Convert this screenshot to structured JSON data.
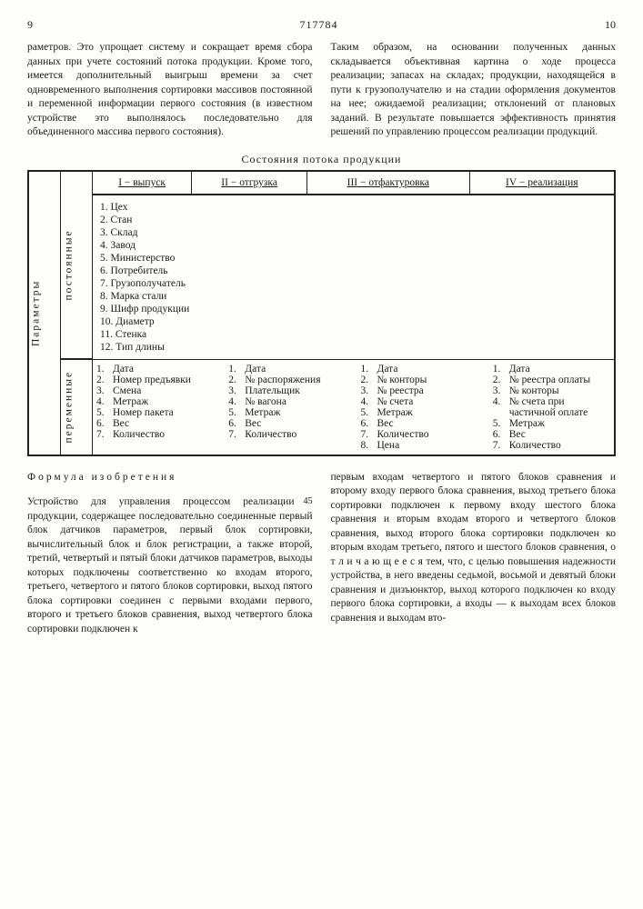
{
  "header": {
    "page_left": "9",
    "doc_number": "717784",
    "page_right": "10"
  },
  "top_left_paragraph": "раметров. Это упрощает систему и сокращает время сбора данных при учете состояний потока продукции. Кроме того, имеется дополнительный выигрыш времени за счет одновременного выполнения сортировки массивов постоянной и переменной информации первого состояния (в известном устройстве это выполнялось последовательно для объединенного массива первого состояния).",
  "top_right_paragraph": "Таким образом, на основании полученных данных складывается объективная картина о ходе процесса реализации; запасах на складах; продукции, находящейся в пути к грузополучателю и на стадии оформления документов на нее; ожидаемой реализации; отклонений от плановых заданий. В результате повышается эффективность принятия решений по управлению процессом реализации продукций.",
  "table": {
    "title": "Состояния потока продукции",
    "side_outer": "Параметры",
    "side_top": "постоянные",
    "side_bottom": "переменные",
    "headers": {
      "c1": "I − выпуск",
      "c2": "II − отгрузка",
      "c3": "III − отфактуровка",
      "c4": "IV − реализация"
    },
    "constant_items": [
      "1. Цех",
      "2. Стан",
      "3. Склад",
      "4. Завод",
      "5. Министерство",
      "6. Потребитель",
      "7. Грузополучатель",
      "8. Марка стали",
      "9. Шифр продукции",
      "10. Диаметр",
      "11. Стенка",
      "12. Тип длины"
    ],
    "variable": {
      "col1": [
        {
          "n": "1.",
          "t": "Дата"
        },
        {
          "n": "2.",
          "t": "Номер предъявки"
        },
        {
          "n": "3.",
          "t": "Смена"
        },
        {
          "n": "4.",
          "t": "Метраж"
        },
        {
          "n": "5.",
          "t": "Номер пакета"
        },
        {
          "n": "6.",
          "t": "Вес"
        },
        {
          "n": "7.",
          "t": "Количество"
        }
      ],
      "col2": [
        {
          "n": "1.",
          "t": "Дата"
        },
        {
          "n": "2.",
          "t": "№ распоряжения"
        },
        {
          "n": "3.",
          "t": "Плательщик"
        },
        {
          "n": "4.",
          "t": "№ вагона"
        },
        {
          "n": "5.",
          "t": "Метраж"
        },
        {
          "n": "6.",
          "t": "Вес"
        },
        {
          "n": "7.",
          "t": "Количество"
        }
      ],
      "col3": [
        {
          "n": "1.",
          "t": "Дата"
        },
        {
          "n": "2.",
          "t": "№ конторы"
        },
        {
          "n": "3.",
          "t": "№ реестра"
        },
        {
          "n": "4.",
          "t": "№ счета"
        },
        {
          "n": "5.",
          "t": "Метраж"
        },
        {
          "n": "6.",
          "t": "Вес"
        },
        {
          "n": "7.",
          "t": "Количество"
        },
        {
          "n": "8.",
          "t": "Цена"
        }
      ],
      "col4": [
        {
          "n": "1.",
          "t": "Дата"
        },
        {
          "n": "2.",
          "t": "№ реестра оплаты"
        },
        {
          "n": "3.",
          "t": "№ конторы"
        },
        {
          "n": "4.",
          "t": "№ счета при частичной оплате"
        },
        {
          "n": "5.",
          "t": "Метраж"
        },
        {
          "n": "6.",
          "t": "Вес"
        },
        {
          "n": "7.",
          "t": "Количество"
        }
      ]
    }
  },
  "formula": {
    "title": "Формула изобретения",
    "line45": "45",
    "line50": "50",
    "line55": "55",
    "left_text": "Устройство для управления процессом реализации продукции, содержащее последовательно соединенные первый блок датчиков параметров, первый блок сортировки, вычислительный блок и блок регистрации, а также второй, третий, четвертый и пятый блоки датчиков параметров, выходы которых подключены соответственно ко входам второго, третьего, четвертого и пятого блоков сортировки, выход пятого блока сортировки соединен с первыми входами первого, второго и третьего блоков сравнения, выход четвертого блока сортировки подключен к",
    "right_text": "первым входам четвертого и пятого блоков сравнения и второму входу первого блока сравнения, выход третьего блока сортировки подключен к первому входу шестого блока сравнения и вторым входам второго и четвертого блоков сравнения, выход второго блока сортировки подключен ко вторым входам третьего, пятого и шестого блоков сравнения, о т л и ч а ю щ е е с я тем, что, с целью повышения надежности устройства, в него введены седьмой, восьмой и девятый блоки сравнения и дизъюнктор, выход которого подключен ко входу первого блока сортировки, а входы — к выходам всех блоков сравнения и выходам вто-"
  }
}
